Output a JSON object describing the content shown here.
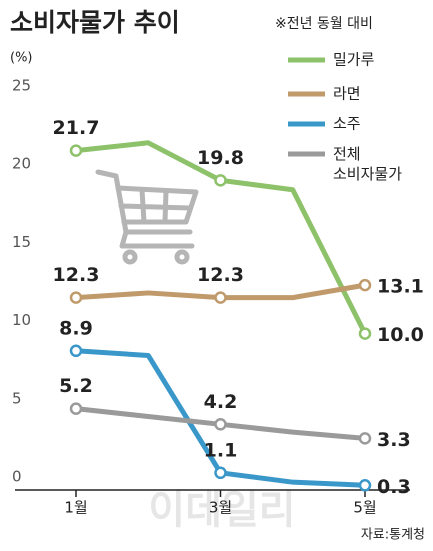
{
  "chart_data": {
    "type": "line",
    "title": "소비자물가 추이",
    "subtitle": "※전년 동월 대비",
    "y_label": "(%)",
    "source": "자료:통계청",
    "watermark": "이데일리",
    "categories": [
      "1월",
      null,
      "3월",
      null,
      "5월"
    ],
    "series": [
      {
        "name": "밀가루",
        "color": "#8dc26a",
        "values": [
          21.7,
          22.2,
          19.8,
          19.2,
          10.0
        ],
        "value_labels": [
          "21.7",
          null,
          "19.8",
          null,
          "10.0"
        ]
      },
      {
        "name": "라면",
        "color": "#c09a6b",
        "values": [
          12.3,
          12.6,
          12.3,
          12.3,
          13.1
        ],
        "value_labels": [
          "12.3",
          null,
          "12.3",
          null,
          "13.1"
        ]
      },
      {
        "name": "소주",
        "color": "#3a97c9",
        "values": [
          8.9,
          8.6,
          1.1,
          0.5,
          0.3
        ],
        "value_labels": [
          "8.9",
          null,
          "1.1",
          null,
          "0.3"
        ]
      },
      {
        "name": "전체 소비자물가",
        "color": "#9a9a9a",
        "values": [
          5.2,
          4.7,
          4.2,
          3.7,
          3.3
        ],
        "value_labels": [
          "5.2",
          null,
          "4.2",
          null,
          "3.3"
        ]
      }
    ],
    "ylim": [
      0,
      25
    ],
    "yticks": [
      0,
      5,
      10,
      15,
      20,
      25
    ]
  }
}
